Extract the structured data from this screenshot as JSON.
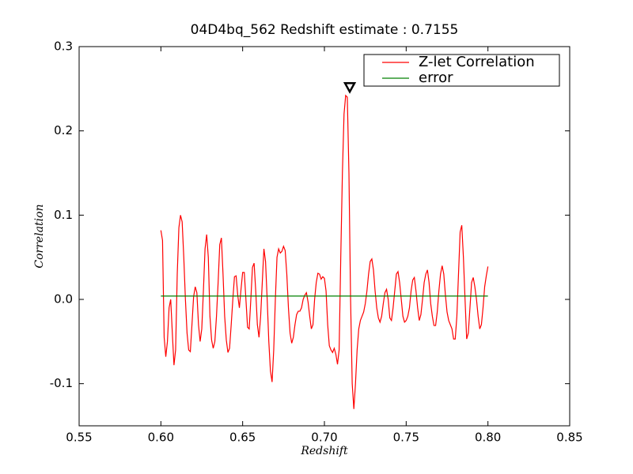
{
  "chart_data": {
    "type": "line",
    "title": "04D4bq_562 Redshift estimate : 0.7155",
    "xlabel": "Redshift",
    "ylabel": "Correlation",
    "xlim": [
      0.55,
      0.85
    ],
    "ylim": [
      -0.15,
      0.3
    ],
    "xticks": [
      0.55,
      {
        "value": 0.6,
        "label": "0.60"
      },
      0.65,
      {
        "value": 0.7,
        "label": "0.70"
      },
      0.75,
      {
        "value": 0.8,
        "label": "0.80"
      },
      0.85
    ],
    "yticks": [
      -0.1,
      {
        "value": 0,
        "label": "0.0"
      },
      0.1,
      0.2,
      0.3
    ],
    "legend": "upper right",
    "grid": false,
    "marker": {
      "x": 0.7155,
      "y": 0.252
    },
    "series": [
      {
        "name": "Z-let Correlation",
        "color": "#ff0000",
        "x": [
          0.6,
          0.601,
          0.602,
          0.603,
          0.604,
          0.605,
          0.606,
          0.607,
          0.608,
          0.609,
          0.61,
          0.611,
          0.612,
          0.613,
          0.614,
          0.615,
          0.616,
          0.617,
          0.618,
          0.619,
          0.62,
          0.621,
          0.622,
          0.623,
          0.624,
          0.625,
          0.626,
          0.627,
          0.628,
          0.629,
          0.63,
          0.631,
          0.632,
          0.633,
          0.634,
          0.635,
          0.636,
          0.637,
          0.638,
          0.639,
          0.64,
          0.641,
          0.642,
          0.643,
          0.644,
          0.645,
          0.646,
          0.647,
          0.648,
          0.649,
          0.65,
          0.651,
          0.652,
          0.653,
          0.654,
          0.655,
          0.656,
          0.657,
          0.658,
          0.659,
          0.66,
          0.661,
          0.662,
          0.663,
          0.664,
          0.665,
          0.666,
          0.667,
          0.668,
          0.669,
          0.67,
          0.671,
          0.672,
          0.673,
          0.674,
          0.675,
          0.676,
          0.677,
          0.678,
          0.679,
          0.68,
          0.681,
          0.682,
          0.683,
          0.684,
          0.685,
          0.686,
          0.687,
          0.688,
          0.689,
          0.69,
          0.691,
          0.692,
          0.693,
          0.694,
          0.695,
          0.696,
          0.697,
          0.698,
          0.699,
          0.7,
          0.701,
          0.702,
          0.703,
          0.704,
          0.705,
          0.706,
          0.707,
          0.708,
          0.709,
          0.71,
          0.711,
          0.712,
          0.713,
          0.714,
          0.715,
          0.716,
          0.717,
          0.718,
          0.719,
          0.72,
          0.721,
          0.722,
          0.723,
          0.724,
          0.725,
          0.726,
          0.727,
          0.728,
          0.729,
          0.73,
          0.731,
          0.732,
          0.733,
          0.734,
          0.735,
          0.736,
          0.737,
          0.738,
          0.739,
          0.74,
          0.741,
          0.742,
          0.743,
          0.744,
          0.745,
          0.746,
          0.747,
          0.748,
          0.749,
          0.75,
          0.751,
          0.752,
          0.753,
          0.754,
          0.755,
          0.756,
          0.757,
          0.758,
          0.759,
          0.76,
          0.761,
          0.762,
          0.763,
          0.764,
          0.765,
          0.766,
          0.767,
          0.768,
          0.769,
          0.77,
          0.771,
          0.772,
          0.773,
          0.774,
          0.775,
          0.776,
          0.777,
          0.778,
          0.779,
          0.78,
          0.781,
          0.782,
          0.783,
          0.784,
          0.785,
          0.786,
          0.787,
          0.788,
          0.789,
          0.79,
          0.791,
          0.792,
          0.793,
          0.794,
          0.795,
          0.796,
          0.797,
          0.798,
          0.799,
          0.8
        ],
        "values": [
          0.082,
          0.07,
          -0.045,
          -0.068,
          -0.05,
          -0.01,
          0.0,
          -0.04,
          -0.078,
          -0.06,
          0.03,
          0.085,
          0.1,
          0.092,
          0.05,
          0.0,
          -0.04,
          -0.06,
          -0.062,
          -0.03,
          0.003,
          0.015,
          0.008,
          -0.03,
          -0.05,
          -0.035,
          0.01,
          0.06,
          0.077,
          0.05,
          -0.02,
          -0.048,
          -0.058,
          -0.05,
          -0.02,
          0.02,
          0.065,
          0.073,
          0.03,
          -0.02,
          -0.048,
          -0.063,
          -0.058,
          -0.03,
          0.0,
          0.027,
          0.028,
          0.005,
          -0.01,
          0.012,
          0.032,
          0.032,
          0.0,
          -0.033,
          -0.035,
          0.0,
          0.038,
          0.043,
          0.01,
          -0.03,
          -0.045,
          -0.02,
          0.02,
          0.06,
          0.045,
          0.0,
          -0.05,
          -0.085,
          -0.098,
          -0.06,
          0.0,
          0.05,
          0.06,
          0.055,
          0.057,
          0.063,
          0.058,
          0.03,
          -0.01,
          -0.04,
          -0.052,
          -0.045,
          -0.03,
          -0.018,
          -0.014,
          -0.014,
          -0.01,
          0.0,
          0.005,
          0.008,
          -0.003,
          -0.02,
          -0.035,
          -0.03,
          0.0,
          0.02,
          0.031,
          0.03,
          0.024,
          0.027,
          0.025,
          0.01,
          -0.03,
          -0.055,
          -0.06,
          -0.063,
          -0.058,
          -0.065,
          -0.077,
          -0.06,
          0.05,
          0.15,
          0.22,
          0.242,
          0.24,
          0.15,
          0.0,
          -0.1,
          -0.13,
          -0.1,
          -0.06,
          -0.035,
          -0.025,
          -0.02,
          -0.015,
          -0.005,
          0.01,
          0.03,
          0.045,
          0.048,
          0.035,
          0.01,
          -0.01,
          -0.022,
          -0.027,
          -0.02,
          -0.005,
          0.008,
          0.012,
          0.0,
          -0.022,
          -0.025,
          -0.01,
          0.01,
          0.03,
          0.033,
          0.02,
          0.0,
          -0.02,
          -0.027,
          -0.025,
          -0.02,
          -0.01,
          0.01,
          0.023,
          0.026,
          0.01,
          -0.01,
          -0.025,
          -0.018,
          0.0,
          0.02,
          0.03,
          0.035,
          0.02,
          -0.005,
          -0.02,
          -0.031,
          -0.031,
          -0.015,
          0.01,
          0.03,
          0.04,
          0.03,
          0.005,
          -0.015,
          -0.025,
          -0.03,
          -0.035,
          -0.047,
          -0.047,
          -0.02,
          0.03,
          0.08,
          0.088,
          0.05,
          0.0,
          -0.047,
          -0.04,
          -0.01,
          0.02,
          0.026,
          0.015,
          0.0,
          -0.02,
          -0.035,
          -0.03,
          -0.01,
          0.015,
          0.028,
          0.039
        ]
      },
      {
        "name": "error",
        "color": "#008000",
        "x": [
          0.6,
          0.8
        ],
        "values": [
          0.004,
          0.004
        ]
      }
    ]
  }
}
